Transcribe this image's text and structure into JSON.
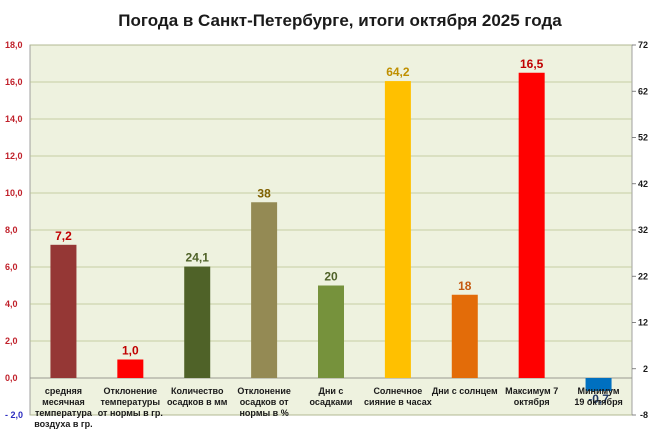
{
  "chart_data": {
    "type": "bar",
    "title": "Погода в Санкт-Петербурге, итоги октября 2025 года",
    "left_axis": {
      "ylim": [
        -2,
        18
      ],
      "ticks": [
        "- 2,0",
        "0,0",
        "2,0",
        "4,0",
        "6,0",
        "8,0",
        "10,0",
        "12,0",
        "14,0",
        "16,0",
        "18,0"
      ]
    },
    "right_axis": {
      "ylim": [
        -8,
        72
      ],
      "ticks": [
        "-8",
        "2",
        "12",
        "22",
        "32",
        "42",
        "52",
        "62",
        "72"
      ]
    },
    "grid": true,
    "bars": [
      {
        "category": "средняя месячная температура воздуха в гр.",
        "label_lines": [
          "средняя",
          "месячная",
          "температура",
          "воздуха в гр."
        ],
        "value": 7.2,
        "display": "7,2",
        "axis": "left",
        "color": "#953735",
        "label_color": "#c00000"
      },
      {
        "category": "Отклонение температуры от нормы в гр.",
        "label_lines": [
          "Отклонение",
          "температуры",
          "от нормы в гр."
        ],
        "value": 1.0,
        "display": "1,0",
        "axis": "left",
        "color": "#ff0000",
        "label_color": "#c00000"
      },
      {
        "category": "Количество осадков в мм",
        "label_lines": [
          "Количество",
          "осадков в мм"
        ],
        "value": 24.1,
        "display": "24,1",
        "axis": "right",
        "color": "#4f6228",
        "label_color": "#4f6228"
      },
      {
        "category": "Отклонение осадков от нормы в %",
        "label_lines": [
          "Отклонение",
          "осадков от",
          "нормы в %"
        ],
        "value": 38,
        "display": "38",
        "axis": "right",
        "color": "#948a54",
        "label_color": "#7f6000"
      },
      {
        "category": "Дни с осадками",
        "label_lines": [
          "Дни с",
          "осадками"
        ],
        "value": 20,
        "display": "20",
        "axis": "right",
        "color": "#76923c",
        "label_color": "#4f6228"
      },
      {
        "category": "Солнечное сияние в часах",
        "label_lines": [
          "Солнечное",
          "сияние в часах"
        ],
        "value": 64.2,
        "display": "64,2",
        "axis": "right",
        "color": "#ffc000",
        "label_color": "#bf8f00"
      },
      {
        "category": "Дни с солнцем",
        "label_lines": [
          "Дни с солнцем"
        ],
        "value": 18,
        "display": "18",
        "axis": "right",
        "color": "#e36c09",
        "label_color": "#c55a11"
      },
      {
        "category": "Максимум 7 октября",
        "label_lines": [
          "Максимум 7",
          "октября"
        ],
        "value": 16.5,
        "display": "16,5",
        "axis": "left",
        "color": "#ff0000",
        "label_color": "#c00000"
      },
      {
        "category": "Минимум 19 октября",
        "label_lines": [
          "Минимум",
          "19 октября"
        ],
        "value": -0.7,
        "display": "-0,7",
        "axis": "left",
        "color": "#0070c0",
        "label_color": "#1f3864"
      }
    ]
  },
  "colors": {
    "plot_background": "#eef2df",
    "grid": "#b7c08f",
    "outer_background": "#ffffff"
  }
}
